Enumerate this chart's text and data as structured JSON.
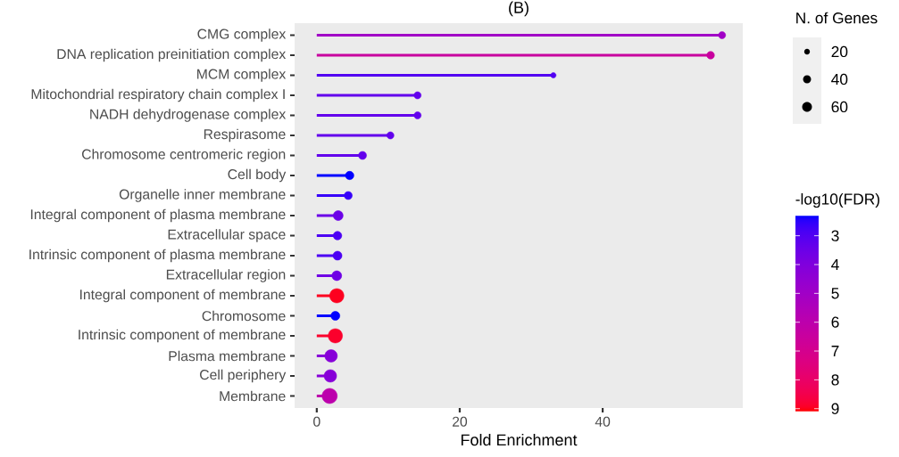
{
  "chart_data": {
    "type": "lollipop",
    "orientation": "horizontal",
    "title": "(B)",
    "xlabel": "Fold Enrichment",
    "categories": [
      "CMG complex",
      "DNA replication preinitiation complex",
      "MCM complex",
      "Mitochondrial respiratory chain complex I",
      "NADH dehydrogenase complex",
      "Respirasome",
      "Chromosome centromeric region",
      "Cell body",
      "Organelle inner membrane",
      "Integral component of plasma membrane",
      "Extracellular space",
      "Intrinsic component of plasma membrane",
      "Extracellular region",
      "Integral component of membrane",
      "Chromosome",
      "Intrinsic component of membrane",
      "Plasma membrane",
      "Cell periphery",
      "Membrane"
    ],
    "values": [
      56.7,
      55.1,
      33.1,
      14.1,
      14.1,
      10.3,
      6.4,
      4.6,
      4.4,
      3.0,
      2.9,
      2.9,
      2.8,
      2.8,
      2.6,
      2.6,
      2.0,
      1.9,
      1.8
    ],
    "sizes": [
      32,
      37,
      18,
      32,
      32,
      32,
      40,
      44,
      40,
      60,
      46,
      50,
      60,
      127,
      50,
      127,
      97,
      97,
      143
    ],
    "size_legend": [
      20,
      40,
      60
    ],
    "legend_title": "N. of Genes",
    "cvalues": [
      5.0,
      6.5,
      3.0,
      3.3,
      3.3,
      3.3,
      3.3,
      2.3,
      2.6,
      3.5,
      2.9,
      2.9,
      3.6,
      9.0,
      2.3,
      8.9,
      4.2,
      4.2,
      6.0
    ],
    "clim": [
      2.3,
      9.1
    ],
    "cticks": [
      3,
      4,
      5,
      6,
      7,
      8,
      9
    ],
    "clabel": "-log10(FDR)",
    "xlim": [
      -3.1,
      59.6
    ],
    "xticks": [
      0,
      20,
      40
    ]
  }
}
